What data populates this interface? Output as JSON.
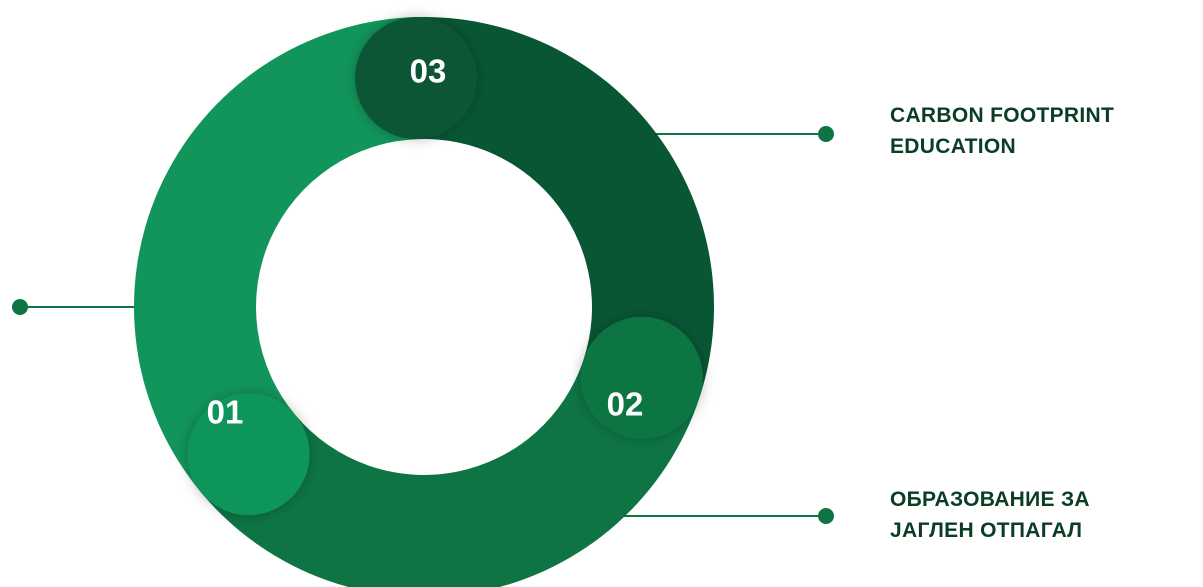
{
  "diagram": {
    "segments": [
      {
        "number": "01",
        "color": "#11955a"
      },
      {
        "number": "02",
        "color": "#0e7443"
      },
      {
        "number": "03",
        "color": "#085634"
      }
    ],
    "labels": {
      "top": {
        "line1": "CARBON FOOTPRINT",
        "line2": "EDUCATION"
      },
      "bottom": {
        "line1": "ОБРАЗОВАНИЕ ЗА",
        "line2": "ЈАГЛЕН ОТПАГАЛ"
      }
    },
    "colors": {
      "connector": "#0e7443",
      "label_text": "#0a3d24",
      "background": "#ffffff"
    }
  }
}
